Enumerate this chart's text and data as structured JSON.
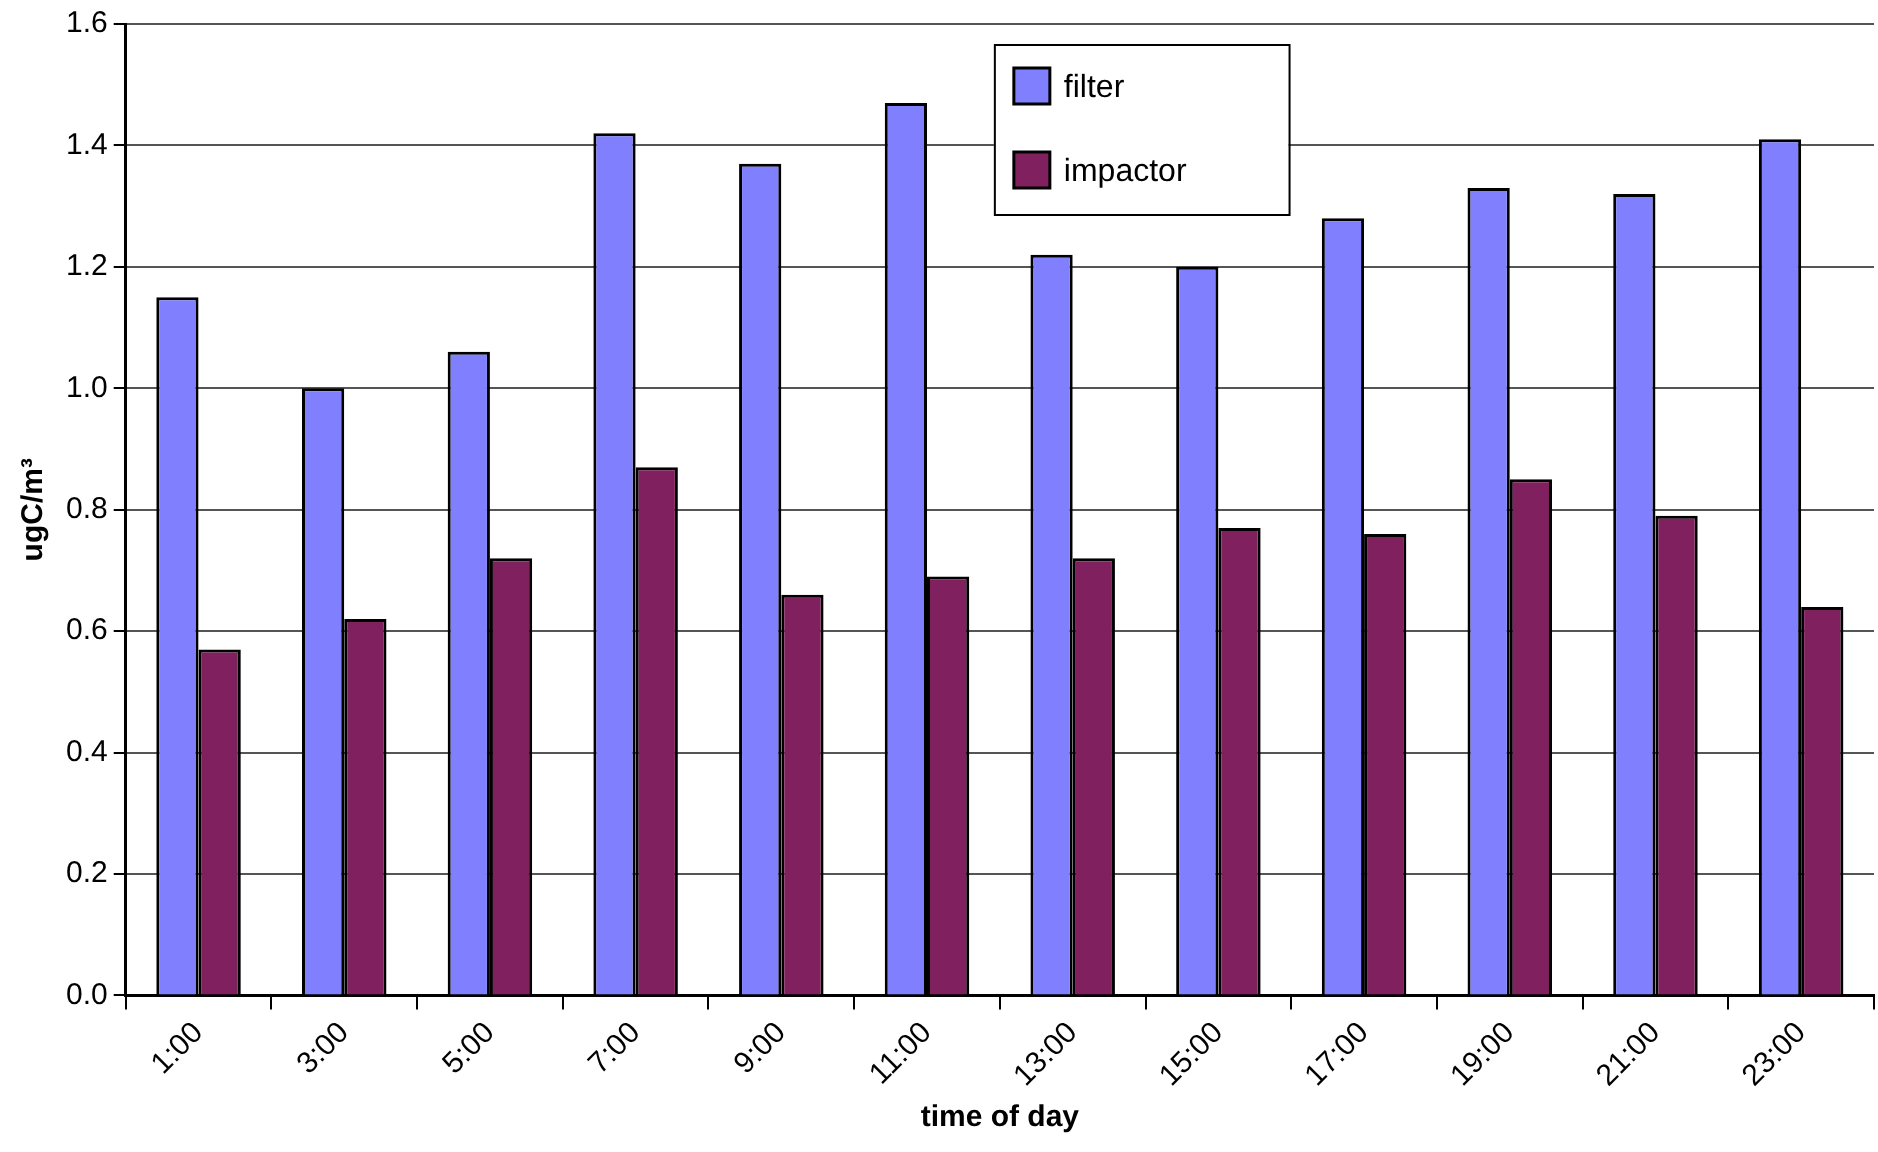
{
  "chart_data": {
    "type": "bar",
    "xlabel": "time of day",
    "ylabel": "ugC/m³",
    "categories": [
      "1:00",
      "3:00",
      "5:00",
      "7:00",
      "9:00",
      "11:00",
      "13:00",
      "15:00",
      "17:00",
      "19:00",
      "21:00",
      "23:00"
    ],
    "series": [
      {
        "name": "filter",
        "color": "#8080ff",
        "values": [
          1.15,
          1.0,
          1.06,
          1.42,
          1.37,
          1.47,
          1.22,
          1.2,
          1.28,
          1.33,
          1.32,
          1.41
        ]
      },
      {
        "name": "impactor",
        "color": "#80205f",
        "values": [
          0.57,
          0.62,
          0.72,
          0.87,
          0.66,
          0.69,
          0.72,
          0.77,
          0.76,
          0.85,
          0.79,
          0.64
        ]
      }
    ],
    "ylim": [
      0,
      1.6
    ],
    "yticks": [
      {
        "value": 0,
        "label": "0.0"
      },
      0.2,
      0.4,
      0.6,
      0.8,
      {
        "value": 1,
        "label": "1.0"
      },
      1.2,
      1.4,
      1.6
    ],
    "grid": "y",
    "legend": "top"
  }
}
